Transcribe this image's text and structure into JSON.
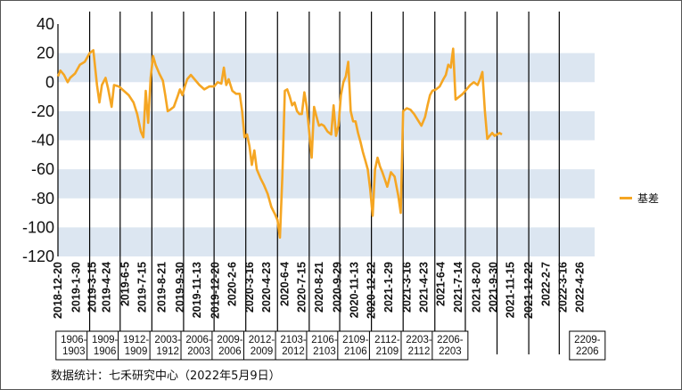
{
  "chart_data": {
    "type": "line",
    "series": [
      {
        "name": "基差",
        "color": "#F5A623",
        "points": [
          [
            0,
            4
          ],
          [
            2,
            8
          ],
          [
            5,
            5
          ],
          [
            8,
            0
          ],
          [
            10,
            3
          ],
          [
            14,
            6
          ],
          [
            18,
            12
          ],
          [
            22,
            14
          ],
          [
            26,
            20
          ],
          [
            29,
            22
          ],
          [
            32,
            -2
          ],
          [
            34,
            -14
          ],
          [
            36,
            -2
          ],
          [
            39,
            3
          ],
          [
            41,
            -4
          ],
          [
            44,
            -17
          ],
          [
            46,
            -2
          ],
          [
            50,
            -3
          ],
          [
            54,
            -6
          ],
          [
            58,
            -9
          ],
          [
            62,
            -14
          ],
          [
            65,
            -22
          ],
          [
            68,
            -34
          ],
          [
            70,
            -38
          ],
          [
            72,
            -6
          ],
          [
            74,
            -28
          ],
          [
            76,
            3
          ],
          [
            78,
            18
          ],
          [
            80,
            12
          ],
          [
            83,
            6
          ],
          [
            86,
            1
          ],
          [
            88,
            -9
          ],
          [
            90,
            -20
          ],
          [
            92,
            -19
          ],
          [
            95,
            -17
          ],
          [
            98,
            -10
          ],
          [
            100,
            -5
          ],
          [
            102,
            -9
          ],
          [
            104,
            -3
          ],
          [
            106,
            2
          ],
          [
            109,
            5
          ],
          [
            112,
            2
          ],
          [
            116,
            -2
          ],
          [
            120,
            -5
          ],
          [
            124,
            -3
          ],
          [
            128,
            -3
          ],
          [
            131,
            0
          ],
          [
            134,
            -1
          ],
          [
            136,
            10
          ],
          [
            138,
            -2
          ],
          [
            140,
            2
          ],
          [
            143,
            -6
          ],
          [
            146,
            -8
          ],
          [
            149,
            -8
          ],
          [
            151,
            -20
          ],
          [
            153,
            -38
          ],
          [
            155,
            -36
          ],
          [
            157,
            -44
          ],
          [
            159,
            -57
          ],
          [
            161,
            -47
          ],
          [
            163,
            -60
          ],
          [
            166,
            -66
          ],
          [
            169,
            -71
          ],
          [
            172,
            -77
          ],
          [
            175,
            -86
          ],
          [
            178,
            -91
          ],
          [
            180,
            -95
          ],
          [
            182,
            -107
          ],
          [
            184,
            -65
          ],
          [
            186,
            -6
          ],
          [
            188,
            -5
          ],
          [
            190,
            -10
          ],
          [
            192,
            -16
          ],
          [
            194,
            -14
          ],
          [
            196,
            -20
          ],
          [
            198,
            -22
          ],
          [
            200,
            -22
          ],
          [
            202,
            -7
          ],
          [
            204,
            -17
          ],
          [
            206,
            -34
          ],
          [
            208,
            -52
          ],
          [
            210,
            -17
          ],
          [
            212,
            -24
          ],
          [
            214,
            -30
          ],
          [
            216,
            -29
          ],
          [
            218,
            -30
          ],
          [
            221,
            -34
          ],
          [
            224,
            -36
          ],
          [
            226,
            -16
          ],
          [
            228,
            -37
          ],
          [
            230,
            -30
          ],
          [
            232,
            -9
          ],
          [
            234,
            0
          ],
          [
            236,
            4
          ],
          [
            238,
            14
          ],
          [
            240,
            -20
          ],
          [
            242,
            -27
          ],
          [
            244,
            -27
          ],
          [
            246,
            -35
          ],
          [
            248,
            -41
          ],
          [
            250,
            -48
          ],
          [
            252,
            -54
          ],
          [
            254,
            -60
          ],
          [
            256,
            -74
          ],
          [
            258,
            -92
          ],
          [
            260,
            -60
          ],
          [
            262,
            -52
          ],
          [
            264,
            -58
          ],
          [
            266,
            -62
          ],
          [
            268,
            -67
          ],
          [
            270,
            -72
          ],
          [
            273,
            -62
          ],
          [
            276,
            -65
          ],
          [
            279,
            -78
          ],
          [
            281,
            -90
          ],
          [
            283,
            -20
          ],
          [
            286,
            -18
          ],
          [
            289,
            -19
          ],
          [
            292,
            -22
          ],
          [
            295,
            -26
          ],
          [
            298,
            -30
          ],
          [
            301,
            -24
          ],
          [
            303,
            -16
          ],
          [
            305,
            -9
          ],
          [
            307,
            -6
          ],
          [
            310,
            -5
          ],
          [
            313,
            -3
          ],
          [
            316,
            2
          ],
          [
            318,
            5
          ],
          [
            320,
            12
          ],
          [
            322,
            10
          ],
          [
            324,
            23
          ],
          [
            326,
            -12
          ],
          [
            329,
            -10
          ],
          [
            332,
            -8
          ],
          [
            335,
            -5
          ],
          [
            338,
            -2
          ],
          [
            341,
            0
          ],
          [
            344,
            -2
          ],
          [
            346,
            2
          ],
          [
            348,
            7
          ],
          [
            350,
            -20
          ],
          [
            352,
            -39
          ],
          [
            354,
            -37
          ],
          [
            356,
            -35
          ],
          [
            358,
            -37
          ],
          [
            360,
            -36
          ],
          [
            362,
            -35
          ],
          [
            364,
            -36
          ]
        ]
      }
    ],
    "x_ticks": [
      {
        "x": 0,
        "label": "2018-12-20"
      },
      {
        "x": 15,
        "label": "2019-1-30"
      },
      {
        "x": 28,
        "label": "2019-3-15"
      },
      {
        "x": 40,
        "label": "2019-4-24"
      },
      {
        "x": 55,
        "label": "2019-6-5"
      },
      {
        "x": 69,
        "label": "2019-7-15"
      },
      {
        "x": 85,
        "label": "2019-8-21"
      },
      {
        "x": 100,
        "label": "2019-9-30"
      },
      {
        "x": 114,
        "label": "2019-11-13"
      },
      {
        "x": 129,
        "label": "2019-12-20"
      },
      {
        "x": 143,
        "label": "2020-2-6"
      },
      {
        "x": 157,
        "label": "2020-3-16"
      },
      {
        "x": 171,
        "label": "2020-4-23"
      },
      {
        "x": 186,
        "label": "2020-6-4"
      },
      {
        "x": 200,
        "label": "2020-7-15"
      },
      {
        "x": 214,
        "label": "2020-8-21"
      },
      {
        "x": 229,
        "label": "2020-9-29"
      },
      {
        "x": 243,
        "label": "2020-11-13"
      },
      {
        "x": 257,
        "label": "2020-12-22"
      },
      {
        "x": 271,
        "label": "2021-1-29"
      },
      {
        "x": 286,
        "label": "2021-3-16"
      },
      {
        "x": 300,
        "label": "2021-4-23"
      },
      {
        "x": 314,
        "label": "2021-6-4"
      },
      {
        "x": 328,
        "label": "2021-7-14"
      },
      {
        "x": 343,
        "label": "2021-8-20"
      },
      {
        "x": 357,
        "label": "2021-9-30"
      },
      {
        "x": 371,
        "label": "2021-11-15"
      },
      {
        "x": 386,
        "label": "2021-12-22"
      },
      {
        "x": 400,
        "label": "2022-2-7"
      },
      {
        "x": 414,
        "label": "2022-3-16"
      },
      {
        "x": 428,
        "label": "2022-4-26"
      }
    ],
    "y_ticks": [
      40,
      20,
      0,
      -20,
      -40,
      -60,
      -80,
      -100,
      -120
    ],
    "ylim": [
      -120,
      40
    ],
    "xlim": [
      0,
      440
    ],
    "bands": [
      [
        0,
        20
      ],
      [
        -40,
        -20
      ],
      [
        -80,
        -60
      ],
      [
        -120,
        -100
      ]
    ],
    "band_color": "#DCE6F1",
    "dividers": [
      26,
      51,
      77,
      103,
      128,
      154,
      180,
      206,
      231,
      257,
      283,
      309,
      334,
      360,
      386,
      411
    ],
    "contracts": [
      {
        "x": 13,
        "label": "1906-\n1903"
      },
      {
        "x": 38.5,
        "label": "1909-\n1906"
      },
      {
        "x": 64,
        "label": "1912-\n1909"
      },
      {
        "x": 90,
        "label": "2003-\n1912"
      },
      {
        "x": 115.5,
        "label": "2006-\n2003"
      },
      {
        "x": 141,
        "label": "2009-\n2006"
      },
      {
        "x": 167,
        "label": "2012-\n2009"
      },
      {
        "x": 193,
        "label": "2103-\n2012"
      },
      {
        "x": 218.5,
        "label": "2106-\n2103"
      },
      {
        "x": 244,
        "label": "2109-\n2106"
      },
      {
        "x": 270,
        "label": "2112-\n2109"
      },
      {
        "x": 296,
        "label": "2203-\n2112"
      },
      {
        "x": 321.5,
        "label": "2206-\n2203"
      },
      {
        "x": 434,
        "label": "2209-\n2206"
      }
    ]
  },
  "footer": {
    "source": "数据统计：七禾研究中心（2022年5月9日）"
  }
}
